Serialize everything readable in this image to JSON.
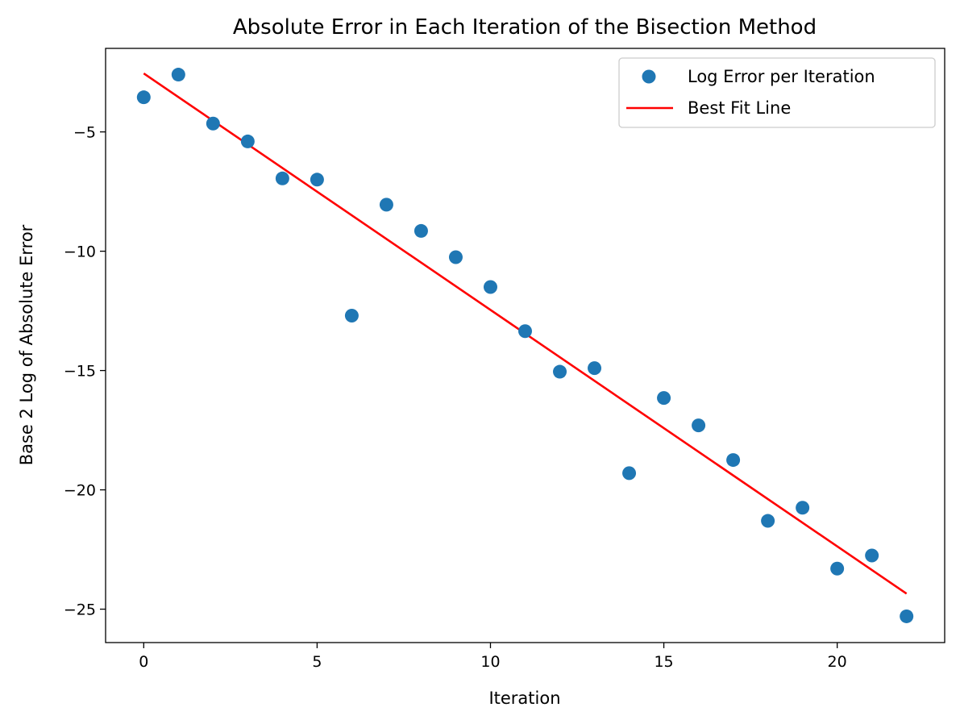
{
  "chart_data": {
    "type": "scatter",
    "title": "Absolute Error in Each Iteration of the Bisection Method",
    "xlabel": "Iteration",
    "ylabel": "Base 2 Log of Absolute Error",
    "xlim": [
      -1.1,
      23.1
    ],
    "ylim": [
      -26.4,
      -1.5
    ],
    "xticks": [
      0,
      5,
      10,
      15,
      20
    ],
    "yticks": [
      -5,
      -10,
      -15,
      -20,
      -25
    ],
    "xtick_labels": [
      "0",
      "5",
      "10",
      "15",
      "20"
    ],
    "ytick_labels": [
      "−5",
      "−10",
      "−15",
      "−20",
      "−25"
    ],
    "grid": false,
    "legend_position": "top-right",
    "series": [
      {
        "name": "Log Error per Iteration",
        "kind": "scatter",
        "color": "#1f77b4",
        "x": [
          0,
          1,
          2,
          3,
          4,
          5,
          6,
          7,
          8,
          9,
          10,
          11,
          12,
          13,
          14,
          15,
          16,
          17,
          18,
          19,
          20,
          21,
          22
        ],
        "y": [
          -3.55,
          -2.6,
          -4.65,
          -5.4,
          -6.95,
          -7.0,
          -12.7,
          -8.05,
          -9.15,
          -10.25,
          -11.5,
          -13.35,
          -15.05,
          -14.9,
          -19.3,
          -16.15,
          -17.3,
          -18.75,
          -21.3,
          -20.75,
          -23.3,
          -22.75,
          -25.3
        ]
      },
      {
        "name": "Best Fit Line",
        "kind": "line",
        "color": "#ff0000",
        "x": [
          0,
          22
        ],
        "y": [
          -2.55,
          -24.35
        ]
      }
    ]
  }
}
